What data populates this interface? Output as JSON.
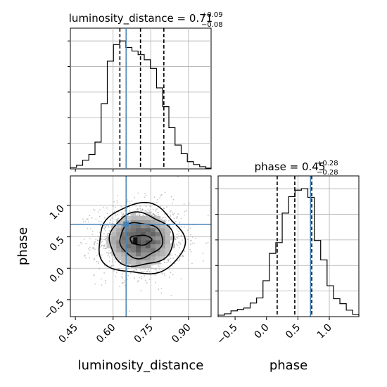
{
  "chart_data": [
    {
      "type": "histogram",
      "panel": "luminosity_distance marginal",
      "title": {
        "param": "luminosity_distance",
        "median": "0.71",
        "plus": "+0.09",
        "minus": "−0.08"
      },
      "xlim": [
        0.43,
        0.99
      ],
      "bin_edges": [
        0.43,
        0.4545,
        0.479,
        0.5035,
        0.528,
        0.5525,
        0.577,
        0.6015,
        0.626,
        0.6505,
        0.675,
        0.6995,
        0.724,
        0.7485,
        0.773,
        0.7975,
        0.822,
        0.8465,
        0.871,
        0.8955,
        0.92,
        0.9445,
        0.969,
        0.99
      ],
      "counts": [
        2,
        5,
        12,
        20,
        37,
        90,
        149,
        172,
        177,
        168,
        163,
        158,
        151,
        139,
        112,
        86,
        57,
        33,
        21,
        10,
        6,
        3,
        1
      ],
      "quantile_lines": [
        0.627,
        0.709,
        0.802
      ],
      "truth": 0.6518,
      "grid": true
    },
    {
      "type": "histogram",
      "panel": "phase marginal",
      "title": {
        "param": "phase",
        "median": "0.45",
        "plus": "+0.28",
        "minus": "−0.28"
      },
      "xlim": [
        -0.77,
        1.47
      ],
      "bin_edges": [
        -0.77,
        -0.668,
        -0.566,
        -0.464,
        -0.362,
        -0.26,
        -0.158,
        -0.056,
        0.046,
        0.148,
        0.25,
        0.352,
        0.454,
        0.556,
        0.658,
        0.76,
        0.862,
        0.964,
        1.066,
        1.168,
        1.27,
        1.372,
        1.47
      ],
      "counts": [
        2,
        4,
        8,
        10,
        12,
        19,
        26,
        50,
        88,
        103,
        144,
        167,
        176,
        178,
        166,
        106,
        79,
        43,
        25,
        18,
        9,
        3
      ],
      "quantile_lines": [
        0.17,
        0.45,
        0.72
      ],
      "truth": 0.7,
      "grid": true
    },
    {
      "type": "2d-density",
      "panel": "luminosity_distance vs phase",
      "xlabel": "luminosity_distance",
      "ylabel": "phase",
      "xlim": [
        0.43,
        0.99
      ],
      "ylim": [
        -0.77,
        1.47
      ],
      "xticks": [
        0.45,
        0.6,
        0.75,
        0.9
      ],
      "xtick_labels": [
        "0.45",
        "0.60",
        "0.75",
        "0.90"
      ],
      "yticks": [
        -0.5,
        0.0,
        0.5,
        1.0
      ],
      "ytick_labels": [
        "−0.5",
        "0.0",
        "0.5",
        "1.0"
      ],
      "center": [
        0.71,
        0.45
      ],
      "sigma": [
        0.085,
        0.28
      ],
      "contour_levels_sigma": [
        0.5,
        1.0,
        1.5,
        2.0
      ],
      "truth": [
        0.6518,
        0.7
      ]
    }
  ],
  "phase_xticks": [
    -0.5,
    0.0,
    0.5,
    1.0
  ],
  "phase_xtick_labels": [
    "−0.5",
    "0.0",
    "0.5",
    "1.0"
  ],
  "colors": {
    "truth": "#4682b4",
    "hist": "#000000",
    "quantile": "#000000",
    "grid": "#b0b0b0",
    "points": "#7f7f7f"
  }
}
